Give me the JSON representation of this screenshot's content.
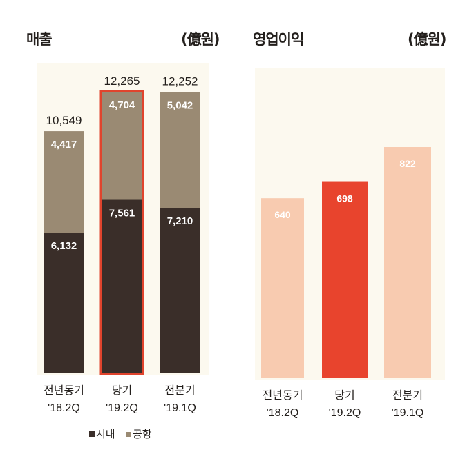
{
  "chart_data": [
    {
      "type": "bar",
      "stacked": true,
      "title": "매출",
      "unit": "(億원)",
      "categories": [
        [
          "전년동기",
          "'18.2Q"
        ],
        [
          "당기",
          "'19.2Q"
        ],
        [
          "전분기",
          "'19.1Q"
        ]
      ],
      "series": [
        {
          "name": "시내",
          "values": [
            6132,
            7561,
            7210
          ],
          "color": "#3a2e29"
        },
        {
          "name": "공항",
          "values": [
            4417,
            4704,
            5042
          ],
          "color": "#9a8a73"
        }
      ],
      "totals": [
        10549,
        12265,
        12252
      ],
      "highlight_index": 1,
      "highlight_color": "#e0442d",
      "legend": [
        "시내",
        "공항"
      ],
      "legend_placement": "bottom",
      "ylim": [
        0,
        12265
      ]
    },
    {
      "type": "bar",
      "title": "영업이익",
      "unit": "(億원)",
      "categories": [
        [
          "전년동기",
          "'18.2Q"
        ],
        [
          "당기",
          "'19.2Q"
        ],
        [
          "전분기",
          "'19.1Q"
        ]
      ],
      "values": [
        640,
        698,
        822
      ],
      "colors": [
        "#f8cbb0",
        "#e8442d",
        "#f8cbb0"
      ],
      "ylim": [
        0,
        822
      ]
    }
  ],
  "background_color": "#fcf9ef"
}
